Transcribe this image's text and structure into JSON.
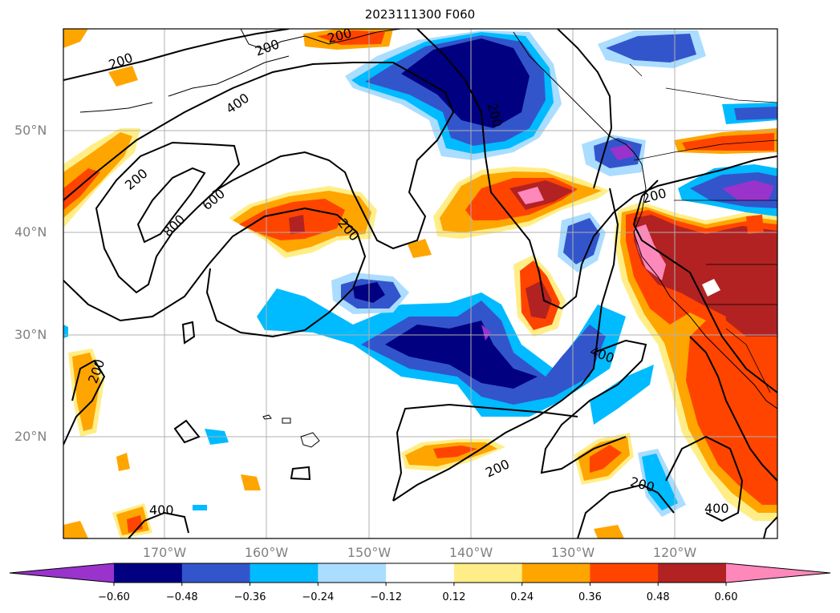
{
  "title": "2023111300 F060",
  "lat_labels": [
    "50°N",
    "40°N",
    "30°N",
    "20°N"
  ],
  "lon_labels": [
    "170°W",
    "160°W",
    "150°W",
    "140°W",
    "130°W",
    "120°W"
  ],
  "contour_labels": [
    "200",
    "200",
    "200",
    "400",
    "200",
    "600",
    "800",
    "200",
    "200",
    "200",
    "200",
    "400",
    "200",
    "200",
    "400",
    "400"
  ],
  "colorbar": {
    "colors": [
      "#9933cc",
      "#000080",
      "#3355cc",
      "#00bbff",
      "#aaddff",
      "#ffffff",
      "#ffee88",
      "#ffa500",
      "#ff4400",
      "#b22222",
      "#ff88bb"
    ],
    "labels": [
      "−0.60",
      "−0.48",
      "−0.36",
      "−0.24",
      "−0.12",
      "0.12",
      "0.24",
      "0.36",
      "0.48",
      "0.60"
    ]
  }
}
